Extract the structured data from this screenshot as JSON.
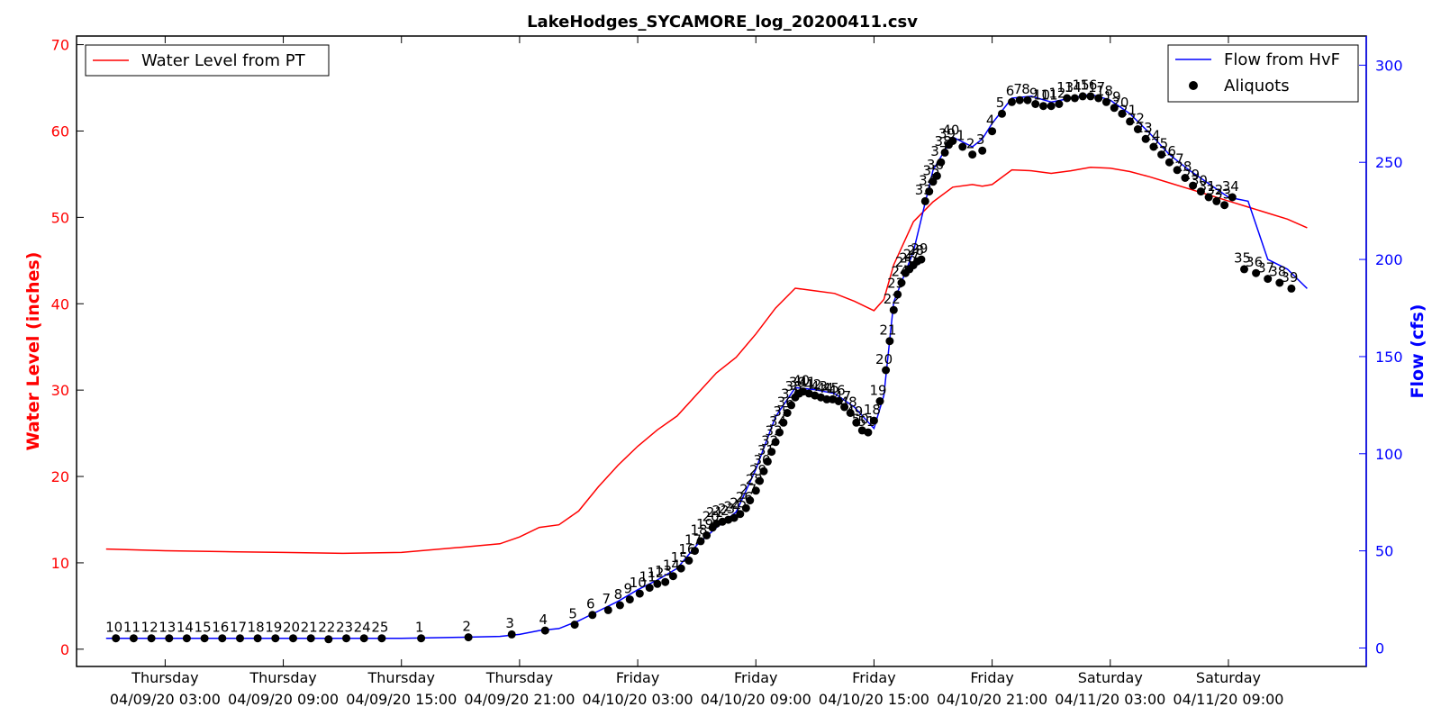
{
  "chart_data": {
    "type": "line",
    "title": "LakeHodges_SYCAMORE_log_20200411.csv",
    "ylabel_left": "Water Level (inches)",
    "ylabel_right": "Flow (cfs)",
    "xlim_hours": [
      -7.5,
      58
    ],
    "ylim_left": [
      -2,
      71
    ],
    "ylim_right": [
      -9.5,
      315
    ],
    "y_ticks_left": [
      0,
      10,
      20,
      30,
      40,
      50,
      60,
      70
    ],
    "y_ticks_right": [
      0,
      50,
      100,
      150,
      200,
      250,
      300
    ],
    "x_ticks": [
      {
        "h": -3,
        "day": "Thursday",
        "date": "04/09/20 03:00"
      },
      {
        "h": 3,
        "day": "Thursday",
        "date": "04/09/20 09:00"
      },
      {
        "h": 9,
        "day": "Thursday",
        "date": "04/09/20 15:00"
      },
      {
        "h": 15,
        "day": "Thursday",
        "date": "04/09/20 21:00"
      },
      {
        "h": 21,
        "day": "Friday",
        "date": "04/10/20 03:00"
      },
      {
        "h": 27,
        "day": "Friday",
        "date": "04/10/20 09:00"
      },
      {
        "h": 33,
        "day": "Friday",
        "date": "04/10/20 15:00"
      },
      {
        "h": 39,
        "day": "Friday",
        "date": "04/10/20 21:00"
      },
      {
        "h": 45,
        "day": "Saturday",
        "date": "04/11/20 03:00"
      },
      {
        "h": 51,
        "day": "Saturday",
        "date": "04/11/20 09:00"
      }
    ],
    "legend_left": {
      "placement": "top-left",
      "entries": [
        {
          "name": "Water Level from PT",
          "color": "#ff0000"
        }
      ]
    },
    "legend_right": {
      "placement": "top-right",
      "entries": [
        {
          "name": "Flow from HvF",
          "color": "#0000ff"
        },
        {
          "name": "Aliquots",
          "color": "#000000"
        }
      ]
    },
    "series": [
      {
        "name": "Water Level from PT",
        "axis": "left",
        "color": "#ff0000",
        "x": [
          -6,
          -3,
          0,
          3,
          6,
          9,
          12,
          14,
          15,
          16,
          17,
          18,
          19,
          20,
          21,
          22,
          23,
          24,
          25,
          26,
          27,
          28,
          29,
          30,
          31,
          32,
          33,
          33.5,
          34,
          35,
          36,
          37,
          38,
          38.5,
          39,
          40,
          41,
          42,
          43,
          44,
          45,
          46,
          47,
          48,
          49,
          50,
          51,
          52,
          53,
          54,
          55
        ],
        "y": [
          11.6,
          11.4,
          11.3,
          11.2,
          11.1,
          11.2,
          11.8,
          12.2,
          13,
          14.1,
          14.4,
          16,
          18.8,
          21.3,
          23.5,
          25.4,
          27,
          29.5,
          32,
          33.8,
          36.5,
          39.5,
          41.8,
          41.5,
          41.2,
          40.3,
          39.2,
          40.5,
          44.5,
          49.5,
          51.8,
          53.5,
          53.8,
          53.6,
          53.8,
          55.5,
          55.4,
          55.1,
          55.4,
          55.8,
          55.7,
          55.3,
          54.7,
          54.0,
          53.3,
          52.6,
          51.9,
          51.2,
          50.5,
          49.8,
          48.8
        ]
      },
      {
        "name": "Flow from HvF",
        "axis": "right",
        "color": "#0000ff",
        "x": [
          -6,
          -3,
          0,
          3,
          6,
          9,
          12,
          14,
          15,
          16,
          17,
          18,
          19,
          20,
          21,
          22,
          23,
          24,
          25,
          26,
          27,
          28,
          29,
          30,
          31,
          32,
          33,
          33.5,
          34,
          35,
          36,
          37,
          38,
          38.5,
          39,
          40,
          41,
          42,
          43,
          44,
          45,
          46,
          47,
          48,
          49,
          50,
          51,
          52,
          53,
          54,
          55
        ],
        "y": [
          5,
          5,
          5,
          5,
          5,
          5,
          5.5,
          6,
          7,
          9,
          10,
          14,
          19,
          24,
          30,
          35,
          41,
          53,
          62,
          70,
          92,
          119,
          134,
          133,
          131,
          124,
          113,
          130,
          178,
          204,
          246,
          263,
          258,
          262,
          270,
          283,
          284,
          281,
          283,
          285,
          282,
          275,
          265,
          254,
          246,
          239,
          232,
          230,
          200,
          195,
          185
        ]
      },
      {
        "name": "Aliquots",
        "axis": "right",
        "color": "#000000",
        "x": [
          -5.5,
          -4.6,
          -3.7,
          -2.8,
          -1.9,
          -1.0,
          -0.1,
          0.8,
          1.7,
          2.6,
          3.5,
          4.4,
          5.3,
          6.2,
          7.1,
          8.0,
          10.0,
          12.4,
          14.6,
          16.3,
          17.8,
          18.7,
          19.5,
          20.1,
          20.6,
          21.1,
          21.6,
          22.0,
          22.4,
          22.8,
          23.2,
          23.6,
          23.9,
          24.2,
          24.5,
          24.8,
          25.0,
          25.3,
          25.6,
          25.9,
          26.2,
          26.5,
          26.7,
          27.0,
          27.2,
          27.4,
          27.6,
          27.8,
          28.0,
          28.2,
          28.4,
          28.6,
          28.8,
          29.0,
          29.2,
          29.4,
          29.7,
          30.0,
          30.3,
          30.6,
          30.9,
          31.2,
          31.5,
          31.8,
          32.1,
          32.4,
          32.7,
          33.0,
          33.3,
          33.6,
          33.8,
          34.0,
          34.2,
          34.4,
          34.6,
          34.8,
          35.0,
          35.2,
          35.4,
          35.6,
          35.8,
          36.0,
          36.2,
          36.4,
          36.6,
          36.8,
          37.0,
          37.5,
          38.0,
          38.5,
          39.0,
          39.5,
          40.0,
          40.4,
          40.8,
          41.2,
          41.6,
          42.0,
          42.4,
          42.8,
          43.2,
          43.6,
          44.0,
          44.4,
          44.8,
          45.2,
          45.6,
          46.0,
          46.4,
          46.8,
          47.2,
          47.6,
          48.0,
          48.4,
          48.8,
          49.2,
          49.6,
          50.0,
          50.4,
          50.8,
          51.2,
          51.8,
          52.4,
          53.0,
          53.6,
          54.2
        ],
        "y": [
          5,
          5,
          5,
          5,
          5,
          5,
          5,
          5,
          5,
          5,
          5,
          5,
          4.5,
          5,
          5,
          5,
          5,
          5.5,
          7,
          9,
          12,
          17,
          19.5,
          22,
          25,
          28,
          31,
          33,
          34,
          37,
          41,
          45,
          50,
          55,
          58,
          62,
          64,
          65,
          66,
          67,
          69,
          72,
          76,
          81,
          86,
          91,
          96,
          101,
          106,
          111,
          116,
          121,
          125,
          129,
          131,
          132,
          131,
          130,
          129,
          128,
          128,
          127,
          124,
          121,
          116,
          112,
          111,
          117,
          127,
          143,
          158,
          174,
          182,
          188,
          193,
          195,
          197,
          199,
          200,
          230,
          235,
          240,
          243,
          250,
          255,
          259,
          261,
          258,
          254,
          256,
          266,
          275,
          281,
          282,
          282,
          280,
          279,
          279,
          280,
          283,
          283,
          284,
          284,
          283,
          281,
          278,
          275,
          271,
          267,
          262,
          258,
          254,
          250,
          246,
          242,
          238,
          235,
          232,
          230,
          228,
          232,
          195,
          193,
          190,
          188,
          185
        ]
      }
    ],
    "aliquot_labels": [
      {
        "x": -5.5,
        "y": 6.5,
        "t": "10"
      },
      {
        "x": -4.6,
        "y": 6.5,
        "t": "11"
      },
      {
        "x": -3.7,
        "y": 6.5,
        "t": "12"
      },
      {
        "x": -2.8,
        "y": 6.5,
        "t": "13"
      },
      {
        "x": -1.9,
        "y": 6.5,
        "t": "14"
      },
      {
        "x": -1.0,
        "y": 6.5,
        "t": "15"
      },
      {
        "x": -0.1,
        "y": 6.5,
        "t": "16"
      },
      {
        "x": 0.8,
        "y": 6.5,
        "t": "17"
      },
      {
        "x": 1.7,
        "y": 6.5,
        "t": "18"
      },
      {
        "x": 2.6,
        "y": 6.5,
        "t": "19"
      },
      {
        "x": 3.5,
        "y": 6.5,
        "t": "20"
      },
      {
        "x": 4.4,
        "y": 6.5,
        "t": "21"
      },
      {
        "x": 5.3,
        "y": 6.5,
        "t": "22"
      },
      {
        "x": 6.2,
        "y": 6.5,
        "t": "23"
      },
      {
        "x": 7.1,
        "y": 6.5,
        "t": "24"
      },
      {
        "x": 8.0,
        "y": 6.5,
        "t": "25"
      },
      {
        "x": 10.0,
        "y": 6.5,
        "t": "1"
      },
      {
        "x": 12.4,
        "y": 7,
        "t": "2"
      },
      {
        "x": 14.6,
        "y": 8.5,
        "t": "3"
      },
      {
        "x": 16.3,
        "y": 10.5,
        "t": "4"
      },
      {
        "x": 17.8,
        "y": 13.5,
        "t": "5"
      },
      {
        "x": 18.7,
        "y": 18.5,
        "t": "6"
      },
      {
        "x": 19.5,
        "y": 21,
        "t": "7"
      },
      {
        "x": 20.1,
        "y": 23.5,
        "t": "8"
      },
      {
        "x": 20.6,
        "y": 26.5,
        "t": "9"
      },
      {
        "x": 21.1,
        "y": 29.5,
        "t": "10"
      },
      {
        "x": 21.6,
        "y": 32.5,
        "t": "11"
      },
      {
        "x": 22.0,
        "y": 34.5,
        "t": "12"
      },
      {
        "x": 22.4,
        "y": 35.5,
        "t": "13"
      },
      {
        "x": 22.8,
        "y": 38.5,
        "t": "14"
      },
      {
        "x": 23.2,
        "y": 42.5,
        "t": "15"
      },
      {
        "x": 23.6,
        "y": 46.5,
        "t": "16"
      },
      {
        "x": 23.9,
        "y": 51.5,
        "t": "17"
      },
      {
        "x": 24.2,
        "y": 56.5,
        "t": "18"
      },
      {
        "x": 24.5,
        "y": 59.5,
        "t": "19"
      },
      {
        "x": 24.8,
        "y": 63.5,
        "t": "20"
      },
      {
        "x": 25.0,
        "y": 65.5,
        "t": "21"
      },
      {
        "x": 25.3,
        "y": 66.5,
        "t": "22"
      },
      {
        "x": 25.6,
        "y": 67.5,
        "t": "23"
      },
      {
        "x": 25.9,
        "y": 68.5,
        "t": "24"
      },
      {
        "x": 26.2,
        "y": 70.5,
        "t": "25"
      },
      {
        "x": 26.5,
        "y": 73.5,
        "t": "26"
      },
      {
        "x": 26.7,
        "y": 77.5,
        "t": "27"
      },
      {
        "x": 27.0,
        "y": 82.5,
        "t": "28"
      },
      {
        "x": 27.2,
        "y": 87.5,
        "t": "29"
      },
      {
        "x": 27.4,
        "y": 92.5,
        "t": "30"
      },
      {
        "x": 27.6,
        "y": 97.5,
        "t": "31"
      },
      {
        "x": 27.8,
        "y": 102.5,
        "t": "32"
      },
      {
        "x": 28.0,
        "y": 107.5,
        "t": "33"
      },
      {
        "x": 28.2,
        "y": 112.5,
        "t": "34"
      },
      {
        "x": 28.4,
        "y": 117.5,
        "t": "35"
      },
      {
        "x": 28.6,
        "y": 122.5,
        "t": "36"
      },
      {
        "x": 28.8,
        "y": 126.5,
        "t": "37"
      },
      {
        "x": 29.0,
        "y": 130.5,
        "t": "38"
      },
      {
        "x": 29.2,
        "y": 132.5,
        "t": "39"
      },
      {
        "x": 29.4,
        "y": 133.5,
        "t": "40"
      },
      {
        "x": 29.7,
        "y": 132.5,
        "t": "41"
      },
      {
        "x": 30.0,
        "y": 131.5,
        "t": "42"
      },
      {
        "x": 30.3,
        "y": 130.5,
        "t": "43"
      },
      {
        "x": 30.6,
        "y": 129.5,
        "t": "44"
      },
      {
        "x": 30.9,
        "y": 129.5,
        "t": "45"
      },
      {
        "x": 31.2,
        "y": 128.5,
        "t": "46"
      },
      {
        "x": 31.5,
        "y": 125.5,
        "t": "47"
      },
      {
        "x": 31.8,
        "y": 122.5,
        "t": "48"
      },
      {
        "x": 32.1,
        "y": 117.5,
        "t": "49"
      },
      {
        "x": 32.4,
        "y": 113.5,
        "t": "50"
      },
      {
        "x": 32.7,
        "y": 112.5,
        "t": "51"
      },
      {
        "x": 33.0,
        "y": 118.5,
        "t": "18"
      },
      {
        "x": 33.3,
        "y": 128.5,
        "t": "19"
      },
      {
        "x": 33.6,
        "y": 144.5,
        "t": "20"
      },
      {
        "x": 33.8,
        "y": 159.5,
        "t": "21"
      },
      {
        "x": 34.0,
        "y": 175.5,
        "t": "22"
      },
      {
        "x": 34.2,
        "y": 183.5,
        "t": "23"
      },
      {
        "x": 34.4,
        "y": 189.5,
        "t": "24"
      },
      {
        "x": 34.6,
        "y": 194.5,
        "t": "25"
      },
      {
        "x": 34.8,
        "y": 196.5,
        "t": "26"
      },
      {
        "x": 35.0,
        "y": 198.5,
        "t": "27"
      },
      {
        "x": 35.2,
        "y": 200.5,
        "t": "28"
      },
      {
        "x": 35.4,
        "y": 201.5,
        "t": "29"
      },
      {
        "x": 35.6,
        "y": 231.5,
        "t": "33"
      },
      {
        "x": 35.8,
        "y": 236.5,
        "t": "34"
      },
      {
        "x": 36.0,
        "y": 241.5,
        "t": "35"
      },
      {
        "x": 36.2,
        "y": 244.5,
        "t": "36"
      },
      {
        "x": 36.4,
        "y": 251.5,
        "t": "37"
      },
      {
        "x": 36.6,
        "y": 256.5,
        "t": "38"
      },
      {
        "x": 36.8,
        "y": 260.5,
        "t": "39"
      },
      {
        "x": 37.0,
        "y": 262.5,
        "t": "40"
      },
      {
        "x": 37.5,
        "y": 259.5,
        "t": "1"
      },
      {
        "x": 38.0,
        "y": 255.5,
        "t": "2"
      },
      {
        "x": 38.5,
        "y": 257.5,
        "t": "3"
      },
      {
        "x": 39.0,
        "y": 267.5,
        "t": "4"
      },
      {
        "x": 39.5,
        "y": 276.5,
        "t": "5"
      },
      {
        "x": 40.0,
        "y": 282.5,
        "t": "6"
      },
      {
        "x": 40.4,
        "y": 283.5,
        "t": "7"
      },
      {
        "x": 40.8,
        "y": 283.5,
        "t": "8"
      },
      {
        "x": 41.2,
        "y": 281.5,
        "t": "9"
      },
      {
        "x": 41.6,
        "y": 280.5,
        "t": "10"
      },
      {
        "x": 42.0,
        "y": 280.5,
        "t": "11"
      },
      {
        "x": 42.4,
        "y": 281.5,
        "t": "12"
      },
      {
        "x": 42.8,
        "y": 284.5,
        "t": "13"
      },
      {
        "x": 43.2,
        "y": 284.5,
        "t": "14"
      },
      {
        "x": 43.6,
        "y": 285.5,
        "t": "15"
      },
      {
        "x": 44.0,
        "y": 285.5,
        "t": "16"
      },
      {
        "x": 44.4,
        "y": 284.5,
        "t": "17"
      },
      {
        "x": 44.8,
        "y": 282.5,
        "t": "18"
      },
      {
        "x": 45.2,
        "y": 279.5,
        "t": "19"
      },
      {
        "x": 45.6,
        "y": 276.5,
        "t": "20"
      },
      {
        "x": 46.0,
        "y": 272.5,
        "t": "21"
      },
      {
        "x": 46.4,
        "y": 268.5,
        "t": "22"
      },
      {
        "x": 46.8,
        "y": 263.5,
        "t": "23"
      },
      {
        "x": 47.2,
        "y": 259.5,
        "t": "24"
      },
      {
        "x": 47.6,
        "y": 255.5,
        "t": "25"
      },
      {
        "x": 48.0,
        "y": 251.5,
        "t": "26"
      },
      {
        "x": 48.4,
        "y": 247.5,
        "t": "27"
      },
      {
        "x": 48.8,
        "y": 243.5,
        "t": "28"
      },
      {
        "x": 49.2,
        "y": 239.5,
        "t": "29"
      },
      {
        "x": 49.6,
        "y": 236.5,
        "t": "30"
      },
      {
        "x": 50.0,
        "y": 233.5,
        "t": "31"
      },
      {
        "x": 50.4,
        "y": 231.5,
        "t": "32"
      },
      {
        "x": 50.8,
        "y": 229.5,
        "t": "33"
      },
      {
        "x": 51.2,
        "y": 233.5,
        "t": "34"
      },
      {
        "x": 51.8,
        "y": 196.5,
        "t": "35"
      },
      {
        "x": 52.4,
        "y": 194.5,
        "t": "36"
      },
      {
        "x": 53.0,
        "y": 191.5,
        "t": "37"
      },
      {
        "x": 53.6,
        "y": 189.5,
        "t": "38"
      },
      {
        "x": 54.2,
        "y": 186.5,
        "t": "39"
      }
    ]
  }
}
